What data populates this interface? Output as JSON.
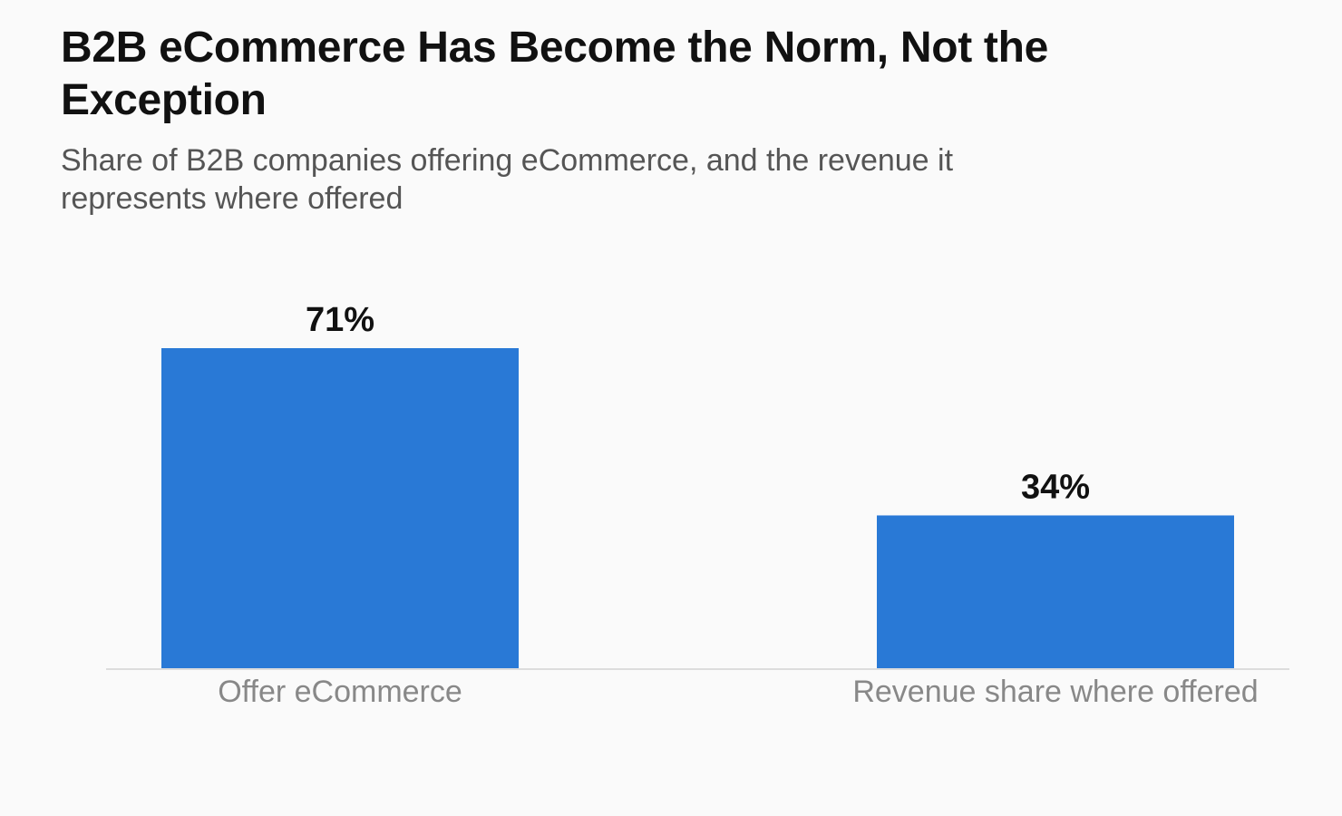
{
  "header": {
    "title": "B2B eCommerce Has Become the Norm, Not the Exception",
    "subtitle": "Share of B2B companies offering eCommerce, and the revenue it represents where offered"
  },
  "colors": {
    "bar": "#2979d6",
    "baseline": "#dddddd",
    "background": "#fafafa"
  },
  "chart_data": {
    "type": "bar",
    "title": "B2B eCommerce Has Become the Norm, Not the Exception",
    "subtitle": "Share of B2B companies offering eCommerce, and the revenue it represents where offered",
    "categories": [
      "Offer eCommerce",
      "Revenue share where offered"
    ],
    "values": [
      71,
      34
    ],
    "value_labels": [
      "71%",
      "34%"
    ],
    "unit": "%",
    "ylim": [
      0,
      71
    ],
    "xlabel": "",
    "ylabel": "",
    "grid": false,
    "legend": "none"
  }
}
